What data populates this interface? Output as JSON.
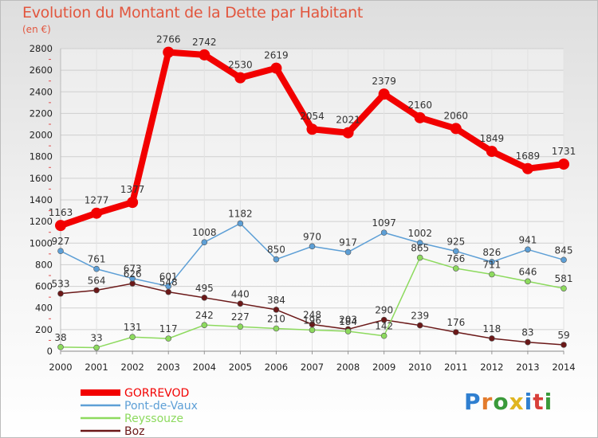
{
  "header": {
    "title": "Evolution du Montant de la Dette par Habitant",
    "unit": "(en €)"
  },
  "logo": {
    "text": "Proxiti"
  },
  "colors": {
    "GORREVOD": "#f20000",
    "Pont-de-Vaux": "#5d9fd6",
    "Reyssouze": "#8dda5e",
    "Boz": "#6b1818"
  },
  "chart_data": {
    "type": "line",
    "title": "Evolution du Montant de la Dette par Habitant",
    "subtitle": "(en €)",
    "xlabel": "",
    "ylabel": "",
    "x": [
      "2000",
      "2001",
      "2002",
      "2003",
      "2004",
      "2005",
      "2006",
      "2007",
      "2008",
      "2009",
      "2010",
      "2011",
      "2012",
      "2013",
      "2014"
    ],
    "ylim": [
      0,
      2800
    ],
    "yticks": [
      0,
      200,
      400,
      600,
      800,
      1000,
      1200,
      1400,
      1600,
      1800,
      2000,
      2200,
      2400,
      2600,
      2800
    ],
    "grid": true,
    "legend_position": "bottom-left",
    "series": [
      {
        "name": "GORREVOD",
        "values": [
          1163,
          1277,
          1377,
          2766,
          2742,
          2530,
          2619,
          2054,
          2021,
          2379,
          2160,
          2060,
          1849,
          1689,
          1731
        ]
      },
      {
        "name": "Pont-de-Vaux",
        "values": [
          927,
          761,
          673,
          601,
          1008,
          1182,
          850,
          970,
          917,
          1097,
          1002,
          925,
          826,
          941,
          845
        ]
      },
      {
        "name": "Reyssouze",
        "values": [
          38,
          33,
          131,
          117,
          242,
          227,
          210,
          196,
          184,
          142,
          865,
          766,
          711,
          646,
          581
        ]
      },
      {
        "name": "Boz",
        "values": [
          533,
          564,
          626,
          548,
          495,
          440,
          384,
          248,
          203,
          290,
          239,
          176,
          118,
          83,
          59
        ]
      }
    ]
  }
}
